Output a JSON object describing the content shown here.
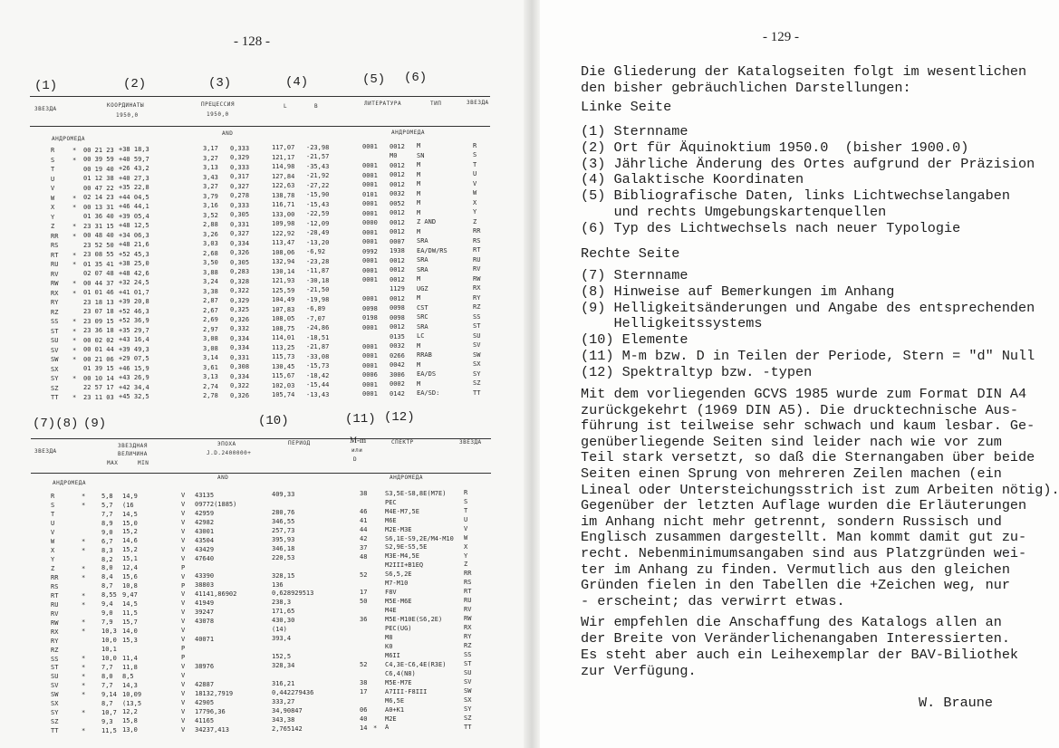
{
  "left_page": {
    "page_number": "- 128 -",
    "top_table": {
      "column_labels": [
        "(1)",
        "(2)",
        "(3)",
        "(4)",
        "(5)",
        "(6)"
      ],
      "headers": {
        "star": "ЗВЕЗДА",
        "coords": "КООРДИНАТЫ",
        "coords_epoch": "1950,0",
        "precession": "ПРЕЦЕССИЯ",
        "precession_epoch": "1950,0",
        "l": "L",
        "b": "B",
        "literature": "ЛИТЕРАТУРА",
        "type": "ТИП",
        "star2": "ЗВЕЗДА"
      },
      "sections": {
        "left": "АНДРОМЕДА",
        "middle": "AND",
        "right": "АНДРОМЕДА"
      },
      "rows": [
        [
          "R",
          "*",
          "00 21 23",
          "+38 18,3",
          "3,17",
          "0,333",
          "117,07",
          "-23,98",
          "0001",
          "0012",
          "M",
          "R"
        ],
        [
          "S",
          "*",
          "00 39 59",
          "+40 59,7",
          "3,27",
          "0,329",
          "121,17",
          "-21,57",
          "",
          "M0",
          "SN",
          "S"
        ],
        [
          "T",
          "",
          "00 19 40",
          "+26 43,2",
          "3,13",
          "0,333",
          "114,98",
          "-35,43",
          "0001",
          "0012",
          "M",
          "T"
        ],
        [
          "U",
          "",
          "01 12 38",
          "+40 27,3",
          "3,43",
          "0,317",
          "127,84",
          "-21,92",
          "0001",
          "0012",
          "M",
          "U"
        ],
        [
          "V",
          "",
          "00 47 22",
          "+35 22,8",
          "3,27",
          "0,327",
          "122,63",
          "-27,22",
          "0001",
          "0012",
          "M",
          "V"
        ],
        [
          "W",
          "*",
          "02 14 23",
          "+44 04,5",
          "3,79",
          "0,278",
          "138,78",
          "-15,90",
          "0101",
          "0032",
          "M",
          "W"
        ],
        [
          "X",
          "*",
          "00 13 31",
          "+46 44,1",
          "3,16",
          "0,333",
          "116,71",
          "-15,43",
          "0001",
          "0052",
          "M",
          "X"
        ],
        [
          "Y",
          "",
          "01 36 40",
          "+39 05,4",
          "3,52",
          "0,305",
          "133,00",
          "-22,59",
          "0001",
          "0012",
          "M",
          "Y"
        ],
        [
          "Z",
          "*",
          "23 31 15",
          "+48 12,5",
          "2,88",
          "0,331",
          "109,98",
          "-12,09",
          "0000",
          "0012",
          "Z AND",
          "Z"
        ],
        [
          "RR",
          "*",
          "00 48 40",
          "+34 06,3",
          "3,26",
          "0,327",
          "122,92",
          "-28,49",
          "0001",
          "0012",
          "M",
          "RR"
        ],
        [
          "RS",
          "",
          "23 52 50",
          "+48 21,6",
          "3,03",
          "0,334",
          "113,47",
          "-13,20",
          "0001",
          "0007",
          "SRA",
          "RS"
        ],
        [
          "RT",
          "*",
          "23 08 55",
          "+52 45,3",
          "2,68",
          "0,326",
          "108,06",
          "-6,92",
          "0992",
          "1938",
          "EA/DW/RS",
          "RT"
        ],
        [
          "RU",
          "*",
          "01 35 41",
          "+38 25,0",
          "3,50",
          "0,305",
          "132,94",
          "-23,28",
          "0001",
          "0012",
          "SRA",
          "RU"
        ],
        [
          "RV",
          "",
          "02 07 48",
          "+48 42,6",
          "3,88",
          "0,283",
          "130,14",
          "-11,87",
          "0001",
          "0012",
          "SRA",
          "RV"
        ],
        [
          "RW",
          "*",
          "00 44 37",
          "+32 24,5",
          "3,24",
          "0,328",
          "121,93",
          "-30,18",
          "0001",
          "0012",
          "M",
          "RW"
        ],
        [
          "RX",
          "*",
          "01 01 46",
          "+41 01,7",
          "3,38",
          "0,322",
          "125,59",
          "-21,50",
          "",
          "1129",
          "UGZ",
          "RX"
        ],
        [
          "RY",
          "",
          "23 18 13",
          "+39 20,8",
          "2,87",
          "0,329",
          "104,49",
          "-19,98",
          "0001",
          "0012",
          "M",
          "RY"
        ],
        [
          "RZ",
          "",
          "23 07 18",
          "+52 46,3",
          "2,67",
          "0,325",
          "107,83",
          "-6,89",
          "0098",
          "0098",
          "CST",
          "RZ"
        ],
        [
          "SS",
          "*",
          "23 09 15",
          "+52 36,9",
          "2,69",
          "0,326",
          "108,05",
          "-7,07",
          "0198",
          "0098",
          "SRC",
          "SS"
        ],
        [
          "ST",
          "*",
          "23 36 18",
          "+35 29,7",
          "2,97",
          "0,332",
          "108,75",
          "-24,86",
          "0001",
          "0012",
          "SRA",
          "ST"
        ],
        [
          "SU",
          "*",
          "00 02 02",
          "+43 16,4",
          "3,08",
          "0,334",
          "114,01",
          "-18,51",
          "",
          "0135",
          "LC",
          "SU"
        ],
        [
          "SV",
          "*",
          "00 01 44",
          "+39 49,3",
          "3,08",
          "0,334",
          "113,25",
          "-21,87",
          "0001",
          "0032",
          "M",
          "SV"
        ],
        [
          "SW",
          "*",
          "00 21 06",
          "+29 07,5",
          "3,14",
          "0,331",
          "115,73",
          "-33,08",
          "0001",
          "0266",
          "RRAB",
          "SW"
        ],
        [
          "SX",
          "",
          "01 39 15",
          "+46 15,9",
          "3,61",
          "0,308",
          "130,45",
          "-15,73",
          "0001",
          "0042",
          "M",
          "SX"
        ],
        [
          "SY",
          "*",
          "00 10 14",
          "+43 26,9",
          "3,13",
          "0,334",
          "115,67",
          "-18,42",
          "0006",
          "3006",
          "EA/DS",
          "SY"
        ],
        [
          "SZ",
          "",
          "22 57 17",
          "+42 34,4",
          "2,74",
          "0,322",
          "102,03",
          "-15,44",
          "0001",
          "0002",
          "M",
          "SZ"
        ],
        [
          "TT",
          "*",
          "23 11 03",
          "+45 32,5",
          "2,78",
          "0,326",
          "105,74",
          "-13,43",
          "0001",
          "0142",
          "EA/SD:",
          "TT"
        ]
      ]
    },
    "bottom_table": {
      "column_labels": [
        "(7)(8)",
        "(9)",
        "(10)",
        "(11)",
        "(12)"
      ],
      "headers": {
        "star": "ЗВЕЗДА",
        "magnitude_1": "ЗВЕЗДНАЯ",
        "magnitude_2": "ВЕЛИЧИНА",
        "max": "МАХ",
        "min": "MIN",
        "epoch": "ЭПОХА",
        "epoch_jd": "J.D.2400000+",
        "period": "ПЕРИОД",
        "mm": "M-m",
        "mm_or": "или",
        "mm_d": "D",
        "spectrum": "СПЕКТР",
        "star2": "ЗВЕЗДА"
      },
      "sections": {
        "left": "АНДРОМЕДА",
        "middle": "AND",
        "right": "АНДРОМЕДА"
      },
      "rows": [
        [
          "R",
          "*",
          "5,8",
          "14,9",
          "V",
          "43135",
          "409,33",
          "38",
          "",
          "S3,5E-S8,8E(M7E)",
          "R"
        ],
        [
          "S",
          "*",
          "5,7",
          "(16",
          "V",
          "09772(1885)",
          "",
          "",
          "",
          "PEC",
          "S"
        ],
        [
          "T",
          "",
          "7,7",
          "14,5",
          "V",
          "42959",
          "280,76",
          "46",
          "",
          "M4E-M7,5E",
          "T"
        ],
        [
          "U",
          "",
          "8,9",
          "15,0",
          "V",
          "42982",
          "346,55",
          "41",
          "",
          "M6E",
          "U"
        ],
        [
          "V",
          "",
          "9,0",
          "15,2",
          "V",
          "43001",
          "257,73",
          "44",
          "",
          "M2E-M3E",
          "V"
        ],
        [
          "W",
          "*",
          "6,7",
          "14,6",
          "V",
          "43504",
          "395,93",
          "42",
          "",
          "S6,1E-S9,2E/M4-M10",
          "W"
        ],
        [
          "X",
          "*",
          "8,3",
          "15,2",
          "V",
          "43429",
          "346,18",
          "37",
          "",
          "S2,9E-S5,5E",
          "X"
        ],
        [
          "Y",
          "",
          "8,2",
          "15,1",
          "V",
          "47640",
          "220,53",
          "48",
          "",
          "M3E-M4,5E",
          "Y"
        ],
        [
          "Z",
          "*",
          "8,0",
          "12,4",
          "P",
          "",
          "",
          "",
          "",
          "M2III+B1EQ",
          "Z"
        ],
        [
          "RR",
          "*",
          "8,4",
          "15,6",
          "V",
          "43390",
          "328,15",
          "52",
          "",
          "S6,5,2E",
          "RR"
        ],
        [
          "RS",
          "",
          "8,7",
          "10,8",
          "P",
          "38803",
          "136",
          "",
          "",
          "M7-M10",
          "RS"
        ],
        [
          "RT",
          "*",
          "8,55",
          "9,47",
          "V",
          "41141,86902",
          "0,628929513",
          "17",
          "",
          "F8V",
          "RT"
        ],
        [
          "RU",
          "*",
          "9,4",
          "14,5",
          "V",
          "41949",
          "238,3",
          "50",
          "",
          "M5E-M6E",
          "RU"
        ],
        [
          "RV",
          "",
          "9,0",
          "11,5",
          "V",
          "39247",
          "171,65",
          "",
          "",
          "M4E",
          "RV"
        ],
        [
          "RW",
          "*",
          "7,9",
          "15,7",
          "V",
          "43078",
          "430,30",
          "36",
          "",
          "M5E-M10E(S6,2E)",
          "RW"
        ],
        [
          "RX",
          "*",
          "10,3",
          "14,0",
          "V",
          "",
          "(14)",
          "",
          "",
          "PEC(UG)",
          "RX"
        ],
        [
          "RY",
          "",
          "10,0",
          "15,3",
          "V",
          "40071",
          "393,4",
          "",
          "",
          "M8",
          "RY"
        ],
        [
          "RZ",
          "",
          "10,1",
          "",
          "P",
          "",
          "",
          "",
          "",
          "K0",
          "RZ"
        ],
        [
          "SS",
          "*",
          "10,0",
          "11,4",
          "P",
          "",
          "152,5",
          "",
          "",
          "M6II",
          "SS"
        ],
        [
          "ST",
          "*",
          "7,7",
          "11,8",
          "V",
          "38976",
          "328,34",
          "52",
          "",
          "C4,3E-C6,4E(R3E)",
          "ST"
        ],
        [
          "SU",
          "*",
          "8,0",
          "8,5",
          "V",
          "",
          "",
          "",
          "",
          "C6,4(N8)",
          "SU"
        ],
        [
          "SV",
          "*",
          "7,7",
          "14,3",
          "V",
          "42887",
          "316,21",
          "38",
          "",
          "M5E-M7E",
          "SV"
        ],
        [
          "SW",
          "*",
          "9,14",
          "10,09",
          "V",
          "18132,7919",
          "0,442279436",
          "17",
          "",
          "A7III-F8III",
          "SW"
        ],
        [
          "SX",
          "",
          "8,7",
          "(13,5",
          "V",
          "42905",
          "333,27",
          "",
          "",
          "M6,5E",
          "SX"
        ],
        [
          "SY",
          "*",
          "10,7",
          "12,2",
          "V",
          "17796,36",
          "34,90847",
          "06",
          "",
          "A0+K1",
          "SY"
        ],
        [
          "SZ",
          "",
          "9,3",
          "15,8",
          "V",
          "41165",
          "343,38",
          "40",
          "",
          "M2E",
          "SZ"
        ],
        [
          "TT",
          "*",
          "11,5",
          "13,0",
          "V",
          "34237,413",
          "2,765142",
          "14",
          "*",
          "A",
          "TT"
        ]
      ]
    }
  },
  "right_page": {
    "page_number": "- 129 -",
    "intro": [
      "Die Gliederung der Katalogseiten folgt im wesentlichen",
      "den bisher gebräuchlichen Darstellungen:"
    ],
    "left_heading": "Linke Seite",
    "left_items": [
      "(1) Sternname",
      "(2) Ort für Äquinoktium 1950.0  (bisher 1900.0)",
      "(3) Jährliche Änderung des Ortes aufgrund der Präzision",
      "(4) Galaktische Koordinaten",
      "(5) Bibliografische Daten, links Lichtwechselangaben",
      "    und rechts Umgebungskartenquellen",
      "(6) Typ des Lichtwechsels nach neuer Typologie"
    ],
    "right_heading": "Rechte Seite",
    "right_items": [
      "(7) Sternname",
      "(8) Hinweise auf Bemerkungen im Anhang",
      "(9) Helligkeitsänderungen und Angabe des entsprechenden",
      "    Helligkeitssystems",
      "(10) Elemente",
      "(11) M-m bzw. D in Teilen der Periode, Stern = \"d\" Null",
      "(12) Spektraltyp bzw. -typen"
    ],
    "paragraph1": [
      "Mit dem vorliegenden GCVS 1985 wurde zum Format DIN A4",
      "zurückgekehrt (1969 DIN A5). Die drucktechnische Aus-",
      "führung ist teilweise sehr schwach und kaum lesbar. Ge-",
      "genüberliegende Seiten sind leider nach wie vor zum",
      "Teil stark versetzt, so daß die Sternangaben über beide",
      "Seiten einen Sprung von mehreren Zeilen machen (ein",
      "Lineal oder Untersteichungsstrich ist zum Arbeiten nötig).",
      "Gegenüber der letzten Auflage wurden die Erläuterungen",
      "im Anhang nicht mehr getrennt, sondern Russisch und",
      "Englisch zusammen dargestellt. Man kommt damit gut zu-",
      "recht. Nebenminimumsangaben sind aus Platzgründen wei-",
      "ter im Anhang zu finden. Vermutlich aus den gleichen",
      "Gründen fielen in den Tabellen die +Zeichen weg, nur",
      "- erscheint; das verwirrt etwas."
    ],
    "paragraph2": [
      "Wir empfehlen die Anschaffung des Katalogs allen an",
      "der Breite von Veränderlichenangaben Interessierten.",
      "Es steht aber auch ein Leihexemplar der BAV-Biliothek",
      "zur Verfügung."
    ],
    "signature": "W. Braune"
  }
}
